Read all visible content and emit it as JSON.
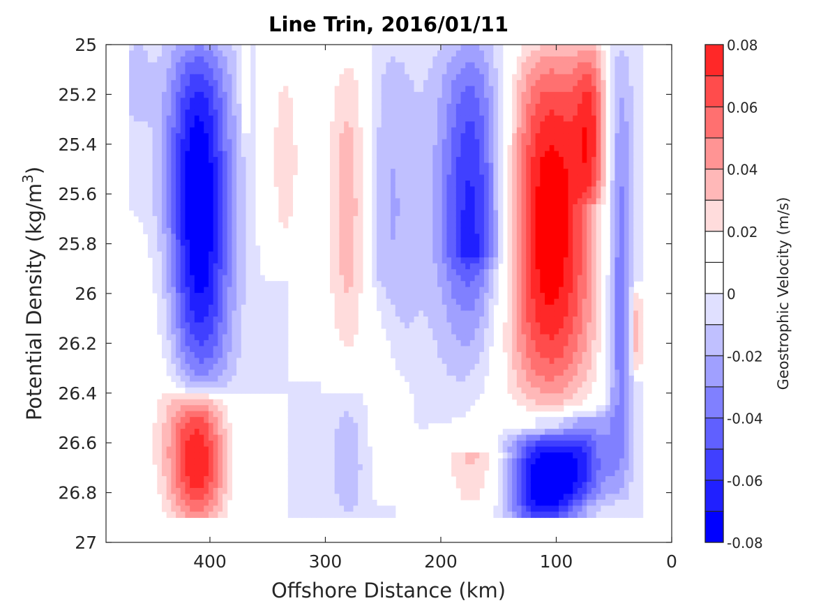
{
  "chart_data": {
    "type": "heatmap",
    "subtype": "filled-contour",
    "title": "Line Trin, 2016/01/11",
    "xlabel": "Offshore Distance (km)",
    "ylabel": "Potential Density (kg/m",
    "ylabel_superscript": "3",
    "ylabel_suffix": ")",
    "xlim": [
      490,
      0
    ],
    "ylim": [
      27,
      25
    ],
    "x_reversed": true,
    "y_reversed": true,
    "xticks": [
      400,
      300,
      200,
      100,
      0
    ],
    "xtick_labels": [
      "400",
      "300",
      "200",
      "100",
      "0"
    ],
    "yticks": [
      25,
      25.2,
      25.4,
      25.6,
      25.8,
      26,
      26.2,
      26.4,
      26.6,
      26.8,
      27
    ],
    "ytick_labels": [
      "25",
      "25.2",
      "25.4",
      "25.6",
      "25.8",
      "26",
      "26.2",
      "26.4",
      "26.6",
      "26.8",
      "27"
    ],
    "grid": false,
    "colorbar": {
      "label": "Geostrophic Velocity (m/s)",
      "range": [
        -0.08,
        0.08
      ],
      "ticks": [
        0.08,
        0.06,
        0.04,
        0.02,
        0,
        -0.02,
        -0.04,
        -0.06,
        -0.08
      ],
      "tick_labels": [
        "0.08",
        "0.06",
        "0.04",
        "0.02",
        "0",
        "-0.02",
        "-0.04",
        "-0.06",
        "-0.08"
      ],
      "levels": [
        -0.08,
        -0.07,
        -0.06,
        -0.05,
        -0.04,
        -0.03,
        -0.02,
        -0.01,
        0,
        0.01,
        0.02,
        0.03,
        0.04,
        0.05,
        0.06,
        0.07,
        0.08
      ],
      "colors": [
        "#0000ff",
        "#2020ff",
        "#4040ff",
        "#6060ff",
        "#8080ff",
        "#a0a0ff",
        "#c0c0ff",
        "#e0e0ff",
        "#ffffff",
        "#ffffff",
        "#ffdcdc",
        "#ffb8b8",
        "#ff9494",
        "#ff7070",
        "#ff4c4c",
        "#ff2828",
        "#ff0000"
      ]
    },
    "data_extent": {
      "x_range": [
        470,
        25
      ],
      "y_range": [
        25,
        26.9
      ]
    },
    "features": [
      {
        "x": 463,
        "y0": 25,
        "y1": 25.3,
        "halfwidth": 12,
        "peak": -0.015
      },
      {
        "x": 410,
        "y0": 25,
        "y1": 26.35,
        "halfwidth": 28,
        "peak": -0.085
      },
      {
        "x": 440,
        "y0": 25.7,
        "y1": 26.9,
        "halfwidth": 28,
        "peak": 0.015
      },
      {
        "x": 410,
        "y0": 26.45,
        "y1": 26.9,
        "halfwidth": 26,
        "peak": 0.075
      },
      {
        "x": 370,
        "y0": 25,
        "y1": 25.4,
        "halfwidth": 4,
        "peak": 0.015
      },
      {
        "x": 335,
        "y0": 25,
        "y1": 25.9,
        "halfwidth": 18,
        "peak": 0.025
      },
      {
        "x": 278,
        "y0": 25,
        "y1": 26.3,
        "halfwidth": 22,
        "peak": 0.045
      },
      {
        "x": 250,
        "y0": 25,
        "y1": 26.3,
        "halfwidth": 30,
        "peak": -0.025
      },
      {
        "x": 250,
        "y0": 26.0,
        "y1": 26.8,
        "halfwidth": 14,
        "peak": 0.015
      },
      {
        "x": 280,
        "y0": 26.45,
        "y1": 26.9,
        "halfwidth": 20,
        "peak": -0.015
      },
      {
        "x": 172,
        "y0": 25,
        "y1": 26.6,
        "halfwidth": 30,
        "peak": -0.07
      },
      {
        "x": 170,
        "y0": 25.9,
        "y1": 26.9,
        "halfwidth": 30,
        "peak": 0.04
      },
      {
        "x": 105,
        "y0": 25,
        "y1": 26.45,
        "halfwidth": 42,
        "peak": 0.09
      },
      {
        "x": 70,
        "y0": 25,
        "y1": 25.6,
        "halfwidth": 14,
        "peak": 0.04
      },
      {
        "x": 110,
        "y0": 26.6,
        "y1": 26.9,
        "halfwidth": 34,
        "peak": -0.085
      },
      {
        "x": 75,
        "y0": 26.5,
        "y1": 26.8,
        "halfwidth": 22,
        "peak": -0.035
      },
      {
        "x": 45,
        "y0": 25,
        "y1": 26.8,
        "halfwidth": 12,
        "peak": -0.045
      },
      {
        "x": 30,
        "y0": 26.0,
        "y1": 26.3,
        "halfwidth": 5,
        "peak": 0.045
      }
    ]
  }
}
